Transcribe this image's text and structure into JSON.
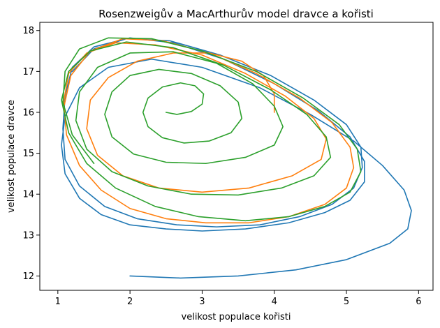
{
  "chart_data": {
    "type": "line",
    "title": "Rosenzweigův a MacArthurův model dravce a kořisti",
    "xlabel": "velikost populace kořisti",
    "ylabel": "velikost populace dravce",
    "xlim": [
      0.75,
      6.2
    ],
    "ylim": [
      11.65,
      18.2
    ],
    "xticks": [
      "1",
      "2",
      "3",
      "4",
      "5",
      "6"
    ],
    "yticks": [
      "12",
      "13",
      "14",
      "15",
      "16",
      "17",
      "18"
    ],
    "grid": false,
    "colors": [
      "#1f77b4",
      "#ff7f0e",
      "#2ca02c"
    ],
    "series": [
      {
        "color": "#1f77b4",
        "x": [
          2.0,
          2.7,
          3.5,
          4.3,
          5.0,
          5.6,
          5.85,
          5.9,
          5.8,
          5.5,
          5.1,
          4.5,
          3.8,
          3.0,
          2.3,
          1.7,
          1.3,
          1.1,
          1.05,
          1.1,
          1.3,
          1.6,
          2.0,
          2.5,
          3.0,
          3.6,
          4.2,
          4.7,
          5.05,
          5.25,
          5.25,
          5.05,
          4.6,
          4.0,
          3.3,
          2.6,
          2.0,
          1.5,
          1.2,
          1.1,
          1.07,
          1.1,
          1.3,
          1.65,
          2.1,
          2.65,
          3.2,
          3.8,
          4.35,
          4.8,
          5.1,
          5.22,
          5.2,
          5.0,
          4.55,
          3.95,
          3.25,
          2.55,
          1.95,
          1.5,
          1.2
        ],
        "y": [
          12.0,
          11.95,
          12.0,
          12.15,
          12.4,
          12.8,
          13.15,
          13.6,
          14.1,
          14.7,
          15.3,
          15.95,
          16.6,
          17.1,
          17.3,
          17.1,
          16.6,
          15.9,
          15.2,
          14.5,
          13.9,
          13.5,
          13.25,
          13.15,
          13.1,
          13.15,
          13.3,
          13.55,
          13.85,
          14.3,
          14.8,
          15.4,
          16.05,
          16.7,
          17.3,
          17.7,
          17.82,
          17.6,
          17.1,
          16.4,
          15.6,
          14.85,
          14.2,
          13.7,
          13.4,
          13.25,
          13.2,
          13.25,
          13.45,
          13.75,
          14.15,
          14.65,
          15.15,
          15.7,
          16.3,
          16.9,
          17.4,
          17.75,
          17.8,
          17.55,
          17.0
        ]
      },
      {
        "color": "#ff7f0e",
        "x": [
          4.0,
          4.0,
          3.85,
          3.55,
          3.1,
          2.6,
          2.1,
          1.7,
          1.45,
          1.4,
          1.55,
          1.9,
          2.4,
          3.0,
          3.65,
          4.25,
          4.65,
          4.72,
          4.55,
          4.15,
          3.6,
          3.0,
          2.35,
          1.8,
          1.4,
          1.15,
          1.08,
          1.12,
          1.3,
          1.6,
          2.0,
          2.5,
          3.05,
          3.65,
          4.2,
          4.7,
          5.0,
          5.1,
          5.05,
          4.8,
          4.35,
          3.75,
          3.1,
          2.45,
          1.9,
          1.45,
          1.18,
          1.08
        ],
        "y": [
          16.0,
          16.45,
          16.9,
          17.25,
          17.45,
          17.45,
          17.25,
          16.85,
          16.3,
          15.6,
          14.95,
          14.45,
          14.15,
          14.05,
          14.15,
          14.45,
          14.85,
          15.35,
          15.85,
          16.4,
          16.95,
          17.4,
          17.65,
          17.7,
          17.45,
          16.95,
          16.25,
          15.45,
          14.7,
          14.1,
          13.65,
          13.4,
          13.3,
          13.3,
          13.45,
          13.75,
          14.15,
          14.65,
          15.15,
          15.75,
          16.35,
          16.95,
          17.45,
          17.75,
          17.8,
          17.5,
          16.9,
          16.1
        ]
      },
      {
        "color": "#2ca02c",
        "x": [
          2.5,
          2.65,
          2.85,
          3.0,
          3.02,
          2.9,
          2.7,
          2.45,
          2.25,
          2.18,
          2.25,
          2.45,
          2.75,
          3.1,
          3.4,
          3.55,
          3.5,
          3.25,
          2.85,
          2.4,
          2.0,
          1.75,
          1.65,
          1.75,
          2.05,
          2.5,
          3.05,
          3.6,
          4.0,
          4.12,
          4.0,
          3.7,
          3.2,
          2.6,
          2.0,
          1.55,
          1.3,
          1.25,
          1.4,
          1.75,
          2.25,
          2.85,
          3.5,
          4.1,
          4.55,
          4.78,
          4.72,
          4.45,
          3.95,
          3.3,
          2.6,
          1.95,
          1.45,
          1.15,
          1.05,
          1.15,
          1.4,
          1.8,
          2.35,
          2.95,
          3.6,
          4.2,
          4.7,
          5.05,
          5.2,
          5.15,
          4.9,
          4.4,
          3.75,
          3.0,
          2.3,
          1.7,
          1.3,
          1.1,
          1.07,
          1.2,
          1.5
        ],
        "y": [
          16.0,
          15.95,
          16.02,
          16.2,
          16.45,
          16.65,
          16.72,
          16.62,
          16.35,
          16.0,
          15.65,
          15.38,
          15.25,
          15.3,
          15.5,
          15.85,
          16.25,
          16.65,
          16.95,
          17.05,
          16.9,
          16.5,
          15.95,
          15.4,
          14.98,
          14.78,
          14.75,
          14.9,
          15.2,
          15.65,
          16.15,
          16.7,
          17.2,
          17.48,
          17.45,
          17.1,
          16.5,
          15.8,
          15.1,
          14.55,
          14.2,
          14.0,
          13.98,
          14.15,
          14.45,
          14.9,
          15.4,
          15.95,
          16.55,
          17.15,
          17.58,
          17.72,
          17.5,
          17.0,
          16.3,
          15.5,
          14.75,
          14.15,
          13.7,
          13.45,
          13.35,
          13.45,
          13.7,
          14.05,
          14.55,
          15.1,
          15.7,
          16.35,
          17.0,
          17.5,
          17.8,
          17.82,
          17.55,
          17.0,
          16.25,
          15.45,
          14.75
        ]
      }
    ]
  }
}
